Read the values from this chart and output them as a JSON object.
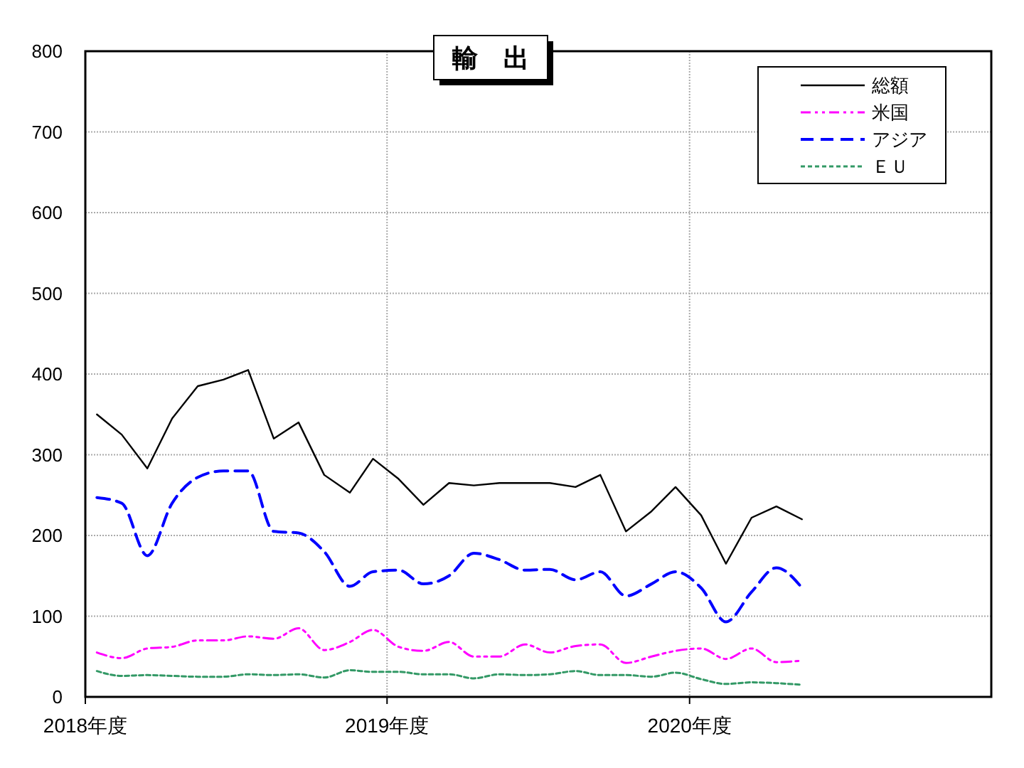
{
  "chart_data": {
    "type": "line",
    "title": "輸　出",
    "x": [
      "2018-04-15",
      "2018-05-15",
      "2018-06-15",
      "2018-07-15",
      "2018-08-15",
      "2018-09-15",
      "2018-10-15",
      "2018-11-15",
      "2018-12-15",
      "2019-01-15",
      "2019-02-15",
      "2019-03-15",
      "2019-04-15",
      "2019-05-15",
      "2019-06-15",
      "2019-07-15",
      "2019-08-15",
      "2019-09-15",
      "2019-10-15",
      "2019-11-15",
      "2019-12-15",
      "2020-01-15",
      "2020-02-15",
      "2020-03-15",
      "2020-04-15",
      "2020-05-15",
      "2020-06-15",
      "2020-07-15",
      "2020-08-15"
    ],
    "xlim": [
      "2018-04",
      "2021-04"
    ],
    "xticks": [
      {
        "value": "2018-04",
        "label": "2018年度"
      },
      {
        "value": "2019-04",
        "label": "2019年度"
      },
      {
        "value": "2020-04",
        "label": "2020年度"
      }
    ],
    "ylim": [
      0,
      800
    ],
    "yticks": [
      0,
      100,
      200,
      300,
      400,
      500,
      600,
      700,
      800
    ],
    "grid": true,
    "legend": "top right",
    "series": [
      {
        "name": "総額",
        "color": "#000000",
        "line_style": "solid",
        "values": [
          350,
          325,
          283,
          345,
          385,
          393,
          405,
          320,
          340,
          275,
          253,
          295,
          270,
          238,
          265,
          262,
          265,
          265,
          265,
          260,
          275,
          205,
          230,
          260,
          225,
          165,
          222,
          236,
          220
        ]
      },
      {
        "name": "米国",
        "color": "#ff00ff",
        "line_style": "dashdot",
        "values": [
          55,
          48,
          60,
          62,
          70,
          70,
          75,
          72,
          85,
          58,
          68,
          83,
          62,
          57,
          68,
          50,
          50,
          65,
          55,
          63,
          65,
          42,
          50,
          57,
          60,
          47,
          60,
          43,
          45
        ]
      },
      {
        "name": "アジア",
        "color": "#0000ff",
        "line_style": "dashed",
        "values": [
          247,
          240,
          175,
          240,
          272,
          280,
          280,
          205,
          203,
          180,
          137,
          155,
          157,
          140,
          150,
          178,
          170,
          157,
          158,
          145,
          155,
          125,
          140,
          155,
          135,
          93,
          130,
          160,
          135
        ]
      },
      {
        "name": "ＥＵ",
        "color": "#339966",
        "line_style": "dotted",
        "values": [
          32,
          26,
          27,
          26,
          25,
          25,
          28,
          27,
          28,
          24,
          33,
          31,
          31,
          28,
          28,
          23,
          28,
          27,
          28,
          32,
          27,
          27,
          25,
          30,
          22,
          16,
          18,
          17,
          15
        ]
      }
    ]
  }
}
